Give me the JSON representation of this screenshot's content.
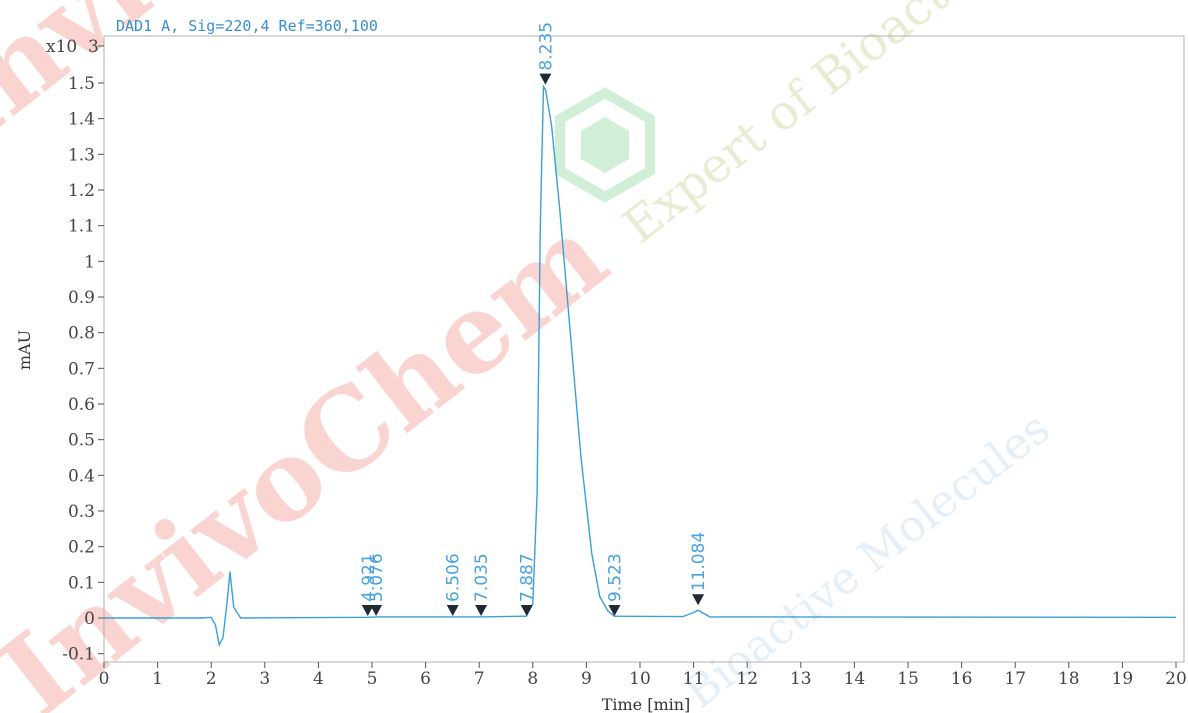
{
  "chart_data": {
    "type": "line",
    "title": "DAD1 A, Sig=220,4 Ref=360,100",
    "xlabel": "Time [min]",
    "ylabel": "mAU",
    "y_multiplier": "x10",
    "y_exponent": "3",
    "xlim": [
      0,
      20
    ],
    "ylim": [
      -0.1,
      1.6
    ],
    "x_ticks": [
      "0",
      "1",
      "2",
      "3",
      "4",
      "5",
      "6",
      "7",
      "8",
      "9",
      "10",
      "11",
      "12",
      "13",
      "14",
      "15",
      "16",
      "17",
      "18",
      "19",
      "20"
    ],
    "y_ticks": [
      "-0.1",
      "0",
      "0.1",
      "0.2",
      "0.3",
      "0.4",
      "0.5",
      "0.6",
      "0.7",
      "0.8",
      "0.9",
      "1",
      "1.1",
      "1.2",
      "1.3",
      "1.4",
      "1.5"
    ],
    "y_top_tick": "3",
    "series": [
      {
        "color": "#3aa0d8",
        "points": [
          [
            0,
            0.0
          ],
          [
            1.8,
            0.0
          ],
          [
            2.0,
            0.002
          ],
          [
            2.08,
            -0.02
          ],
          [
            2.15,
            -0.075
          ],
          [
            2.22,
            -0.055
          ],
          [
            2.3,
            0.05
          ],
          [
            2.35,
            0.13
          ],
          [
            2.42,
            0.03
          ],
          [
            2.55,
            0.0
          ],
          [
            4.9,
            0.002
          ],
          [
            5.1,
            0.003
          ],
          [
            6.5,
            0.003
          ],
          [
            7.0,
            0.003
          ],
          [
            7.88,
            0.005
          ],
          [
            8.0,
            0.04
          ],
          [
            8.08,
            0.35
          ],
          [
            8.14,
            1.1
          ],
          [
            8.2,
            1.49
          ],
          [
            8.24,
            1.48
          ],
          [
            8.35,
            1.38
          ],
          [
            8.5,
            1.15
          ],
          [
            8.7,
            0.8
          ],
          [
            8.9,
            0.45
          ],
          [
            9.1,
            0.18
          ],
          [
            9.25,
            0.06
          ],
          [
            9.4,
            0.02
          ],
          [
            9.52,
            0.005
          ],
          [
            10.8,
            0.004
          ],
          [
            11.0,
            0.015
          ],
          [
            11.08,
            0.022
          ],
          [
            11.2,
            0.012
          ],
          [
            11.3,
            0.003
          ],
          [
            20,
            0.002
          ]
        ]
      }
    ],
    "peaks": [
      {
        "label": "4.921",
        "x": 4.921,
        "y": 0.0
      },
      {
        "label": "5.076",
        "x": 5.076,
        "y": 0.0
      },
      {
        "label": "6.506",
        "x": 6.506,
        "y": 0.0
      },
      {
        "label": "7.035",
        "x": 7.035,
        "y": 0.0
      },
      {
        "label": "7.887",
        "x": 7.887,
        "y": 0.0
      },
      {
        "label": "8.235",
        "x": 8.235,
        "y": 1.49
      },
      {
        "label": "9.523",
        "x": 9.523,
        "y": 0.0
      },
      {
        "label": "11.084",
        "x": 11.084,
        "y": 0.03
      }
    ],
    "watermark": {
      "brand": "InvivoChem",
      "tagline1": "Expert of Bioactive",
      "tagline2": "Bioactive Molecules"
    }
  }
}
